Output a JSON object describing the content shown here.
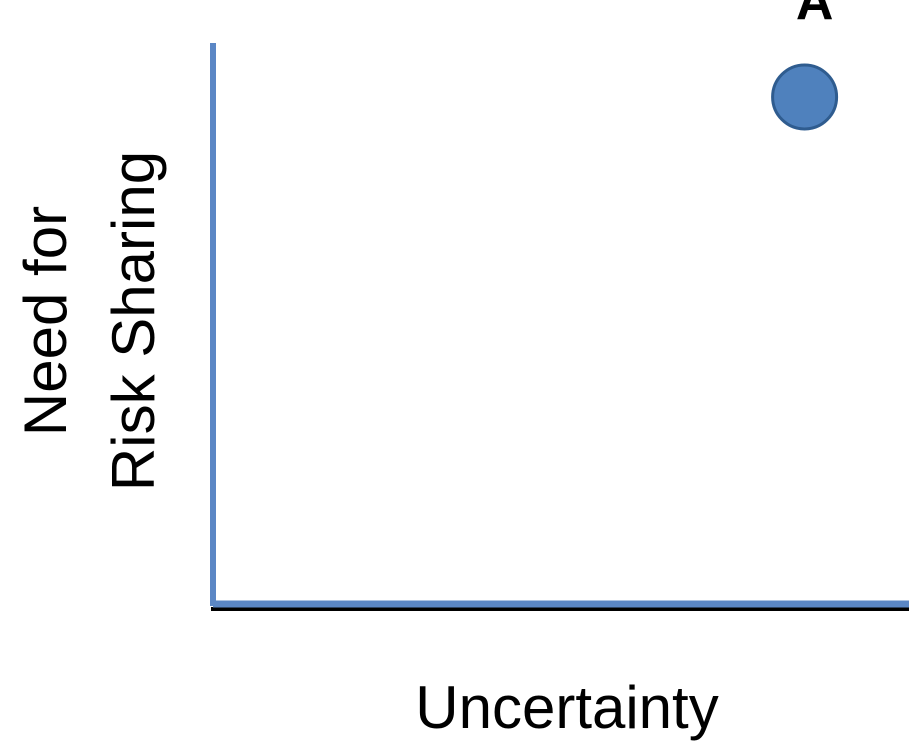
{
  "chart_data": {
    "type": "scatter",
    "title": "",
    "xlabel": "Uncertainty",
    "ylabel_lines": [
      "Need for",
      "Risk Sharing"
    ],
    "xlim": [
      0,
      1
    ],
    "ylim": [
      0,
      1
    ],
    "grid": false,
    "axis_color": "#5B87C5",
    "points": [
      {
        "label": "A",
        "x": 0.85,
        "y": 0.84,
        "color": "#4F81BD",
        "stroke": "#2F5C8F"
      }
    ]
  }
}
